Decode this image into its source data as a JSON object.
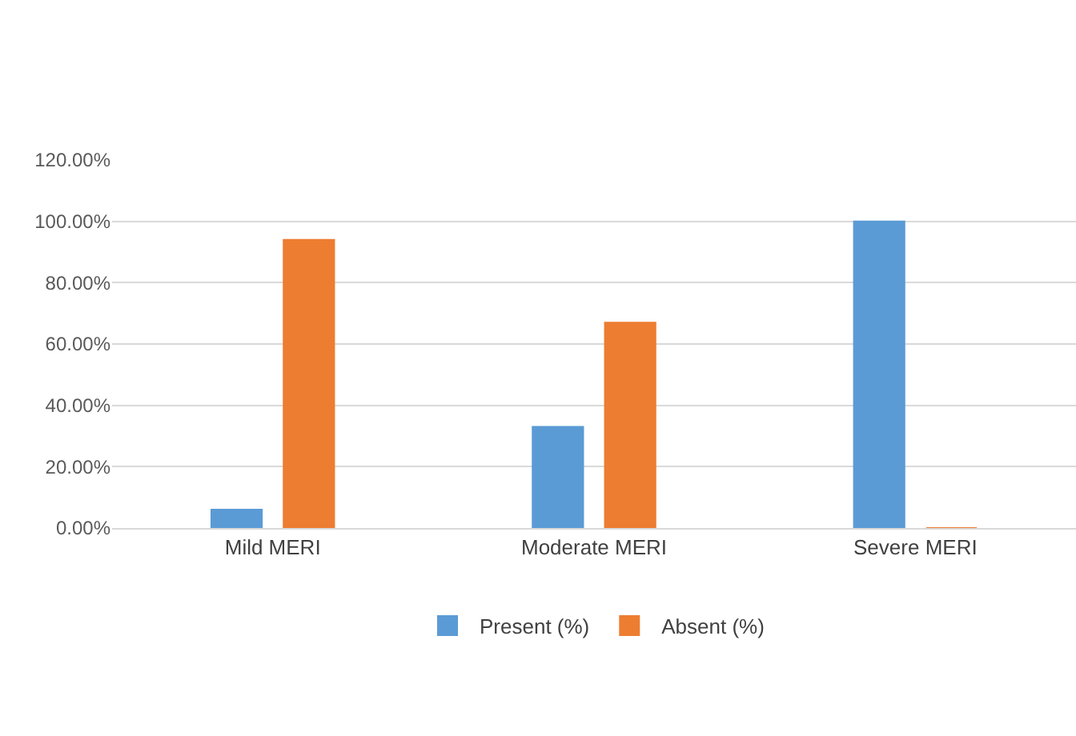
{
  "chart_data": {
    "type": "bar",
    "categories": [
      "Mild MERI",
      "Moderate MERI",
      "Severe MERI"
    ],
    "series": [
      {
        "name": "Present (%)",
        "color": "#5b9bd5",
        "values": [
          6,
          33,
          100
        ]
      },
      {
        "name": "Absent (%)",
        "color": "#ed7d31",
        "values": [
          94,
          67,
          0
        ]
      }
    ],
    "ylim": [
      0,
      120
    ],
    "yticks": [
      {
        "value": 0,
        "label": "0.00%"
      },
      {
        "value": 20,
        "label": "20.00%"
      },
      {
        "value": 40,
        "label": "40.00%"
      },
      {
        "value": 60,
        "label": "60.00%"
      },
      {
        "value": 80,
        "label": "80.00%"
      },
      {
        "value": 100,
        "label": "100.00%"
      },
      {
        "value": 120,
        "label": "120.00%"
      }
    ],
    "grid": "y",
    "legend": "bottom"
  }
}
